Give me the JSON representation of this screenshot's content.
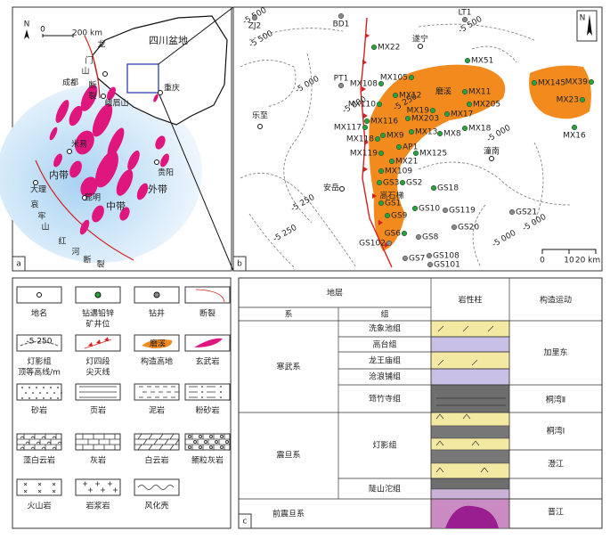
{
  "panel_a": {
    "label": "a",
    "north": "N",
    "scale_zero": "0",
    "scale": "200 km",
    "basin": "四川盆地",
    "places": [
      "成都",
      "峨眉山",
      "重庆",
      "贵阳",
      "米易",
      "昆明",
      "大理"
    ],
    "zones": [
      "内带",
      "中带",
      "外带"
    ],
    "faults": [
      "龙",
      "门",
      "山",
      "断",
      "裂",
      "哀",
      "牢",
      "山",
      "红",
      "河",
      "断",
      "裂"
    ]
  },
  "panel_b": {
    "label": "b",
    "north": "N",
    "places": [
      "遂宁",
      "乐至",
      "安岳",
      "潼南"
    ],
    "highs": [
      "磨溪",
      "高石梯"
    ],
    "contours": [
      "-5 500",
      "-5 500",
      "-5 000",
      "-5 500",
      "-5 000",
      "-5 250",
      "-5 000",
      "-5 000",
      "-5 250",
      "-5 000",
      "-5 250"
    ],
    "scale": [
      "0",
      "10",
      "20 km"
    ],
    "wells": [
      {
        "name": "ZJ2",
        "color": "#8a8a8a"
      },
      {
        "name": "BD1",
        "color": "#8a8a8a"
      },
      {
        "name": "LT1",
        "color": "#8a8a8a"
      },
      {
        "name": "PT1",
        "color": "#8a8a8a"
      },
      {
        "name": "MX22",
        "color": "#27a33c"
      },
      {
        "name": "MX51",
        "color": "#27a33c"
      },
      {
        "name": "MX108",
        "color": "#27a33c"
      },
      {
        "name": "MX105",
        "color": "#27a33c"
      },
      {
        "name": "MX12",
        "color": "#27a33c"
      },
      {
        "name": "MX110",
        "color": "#27a33c"
      },
      {
        "name": "MX11",
        "color": "#27a33c"
      },
      {
        "name": "MX205",
        "color": "#27a33c"
      },
      {
        "name": "MX19",
        "color": "#27a33c"
      },
      {
        "name": "MX17",
        "color": "#27a33c"
      },
      {
        "name": "MX116",
        "color": "#27a33c"
      },
      {
        "name": "MX117",
        "color": "#27a33c"
      },
      {
        "name": "MX203",
        "color": "#27a33c"
      },
      {
        "name": "MX9",
        "color": "#27a33c"
      },
      {
        "name": "MX13",
        "color": "#27a33c"
      },
      {
        "name": "MX8",
        "color": "#27a33c"
      },
      {
        "name": "MX18",
        "color": "#27a33c"
      },
      {
        "name": "MX118",
        "color": "#27a33c"
      },
      {
        "name": "AP1",
        "color": "#27a33c"
      },
      {
        "name": "MX119",
        "color": "#27a33c"
      },
      {
        "name": "MX125",
        "color": "#27a33c"
      },
      {
        "name": "MX21",
        "color": "#27a33c"
      },
      {
        "name": "MX109",
        "color": "#27a33c"
      },
      {
        "name": "GS3",
        "color": "#27a33c"
      },
      {
        "name": "GS2",
        "color": "#27a33c"
      },
      {
        "name": "GS18",
        "color": "#27a33c"
      },
      {
        "name": "GS1",
        "color": "#27a33c"
      },
      {
        "name": "GS10",
        "color": "#27a33c"
      },
      {
        "name": "GS119",
        "color": "#8a8a8a"
      },
      {
        "name": "GS9",
        "color": "#27a33c"
      },
      {
        "name": "GS6",
        "color": "#27a33c"
      },
      {
        "name": "GS8",
        "color": "#8a8a8a"
      },
      {
        "name": "GS20",
        "color": "#8a8a8a"
      },
      {
        "name": "GS21",
        "color": "#8a8a8a"
      },
      {
        "name": "GS102",
        "color": "#8a8a8a"
      },
      {
        "name": "GS7",
        "color": "#8a8a8a"
      },
      {
        "name": "GS108",
        "color": "#8a8a8a"
      },
      {
        "name": "GS101",
        "color": "#8a8a8a"
      },
      {
        "name": "MX145",
        "color": "#27a33c"
      },
      {
        "name": "MX39",
        "color": "#27a33c"
      },
      {
        "name": "MX23",
        "color": "#27a33c"
      },
      {
        "name": "MX16",
        "color": "#27a33c"
      }
    ]
  },
  "legend": {
    "contour_sample": "-5 250",
    "high_sample": "磨溪",
    "items": [
      [
        "地名"
      ],
      [
        "钻遇铅锌",
        "矿井位"
      ],
      [
        "钻井"
      ],
      [
        "断裂"
      ],
      [
        "灯影组",
        "顶等高线/m"
      ],
      [
        "灯四段",
        "尖灭线"
      ],
      [
        "构造高地"
      ],
      [
        "玄武岩"
      ],
      [
        "砂岩"
      ],
      [
        "页岩"
      ],
      [
        "泥岩"
      ],
      [
        "粉砂岩"
      ],
      [
        "藻白云岩"
      ],
      [
        "灰岩"
      ],
      [
        "白云岩"
      ],
      [
        "鲕粒灰岩"
      ],
      [
        "火山岩"
      ],
      [
        "岩浆岩"
      ],
      [
        "风化壳"
      ]
    ]
  },
  "column": {
    "label": "c",
    "header": {
      "strata": "地层",
      "system": "系",
      "formation": "组",
      "lithology": "岩性柱",
      "tectonic": "构造运动"
    },
    "systems": [
      "寒武系",
      "震旦系",
      "前震旦系"
    ],
    "formations": [
      "洗象池组",
      "高台组",
      "龙王庙组",
      "沧浪铺组",
      "筇竹寺组",
      "灯影组",
      "陡山沱组"
    ],
    "movements": [
      "加里东",
      "桐湾Ⅱ",
      "桐湾Ⅰ",
      "澄江",
      "晋江"
    ]
  }
}
